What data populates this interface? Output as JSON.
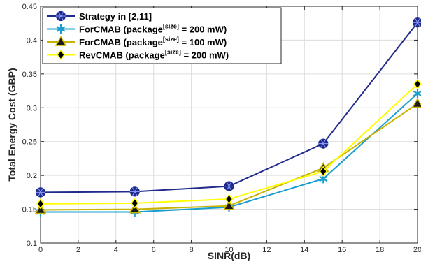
{
  "chart_data": {
    "type": "line",
    "xlabel": "SINR(dB)",
    "ylabel": "Total Energy Cost (GBP)",
    "xlim": [
      0,
      20
    ],
    "ylim": [
      0.1,
      0.45
    ],
    "xticks": [
      0,
      2,
      4,
      6,
      8,
      10,
      12,
      14,
      16,
      18,
      20
    ],
    "yticks": [
      0.1,
      0.15,
      0.2,
      0.25,
      0.3,
      0.35,
      0.4,
      0.45
    ],
    "grid": true,
    "legend_position": "top-left",
    "x": [
      0,
      5,
      10,
      15,
      20
    ],
    "series": [
      {
        "name": "Strategy in [2,11]",
        "legend_parts": [
          "Strategy in [2,11]",
          "",
          ""
        ],
        "values": [
          0.175,
          0.176,
          0.184,
          0.247,
          0.426
        ],
        "color": "#1f2a8a",
        "marker": "hexstar",
        "marker_fill": "#1f2a8a"
      },
      {
        "name": "ForCMAB (package[size] = 200 mW)",
        "legend_parts": [
          "ForCMAB (package",
          "[size]",
          " = 200 mW)"
        ],
        "values": [
          0.146,
          0.146,
          0.153,
          0.195,
          0.321
        ],
        "color": "#1a9fd0",
        "marker": "star",
        "marker_fill": "#1a9fd0"
      },
      {
        "name": "ForCMAB (package[size] = 100 mW)",
        "legend_parts": [
          "ForCMAB (package",
          "[size]",
          " = 100 mW)"
        ],
        "values": [
          0.149,
          0.15,
          0.155,
          0.211,
          0.306
        ],
        "color": "#c8b400",
        "marker": "triangle",
        "marker_fill": "#1a1a1a"
      },
      {
        "name": "RevCMAB (package[size] = 200 mW)",
        "legend_parts": [
          "RevCMAB (package",
          "[size]",
          " = 200 mW)"
        ],
        "values": [
          0.158,
          0.159,
          0.165,
          0.206,
          0.335
        ],
        "color": "#ffff00",
        "marker": "diamond",
        "marker_fill": "#000000"
      }
    ]
  }
}
